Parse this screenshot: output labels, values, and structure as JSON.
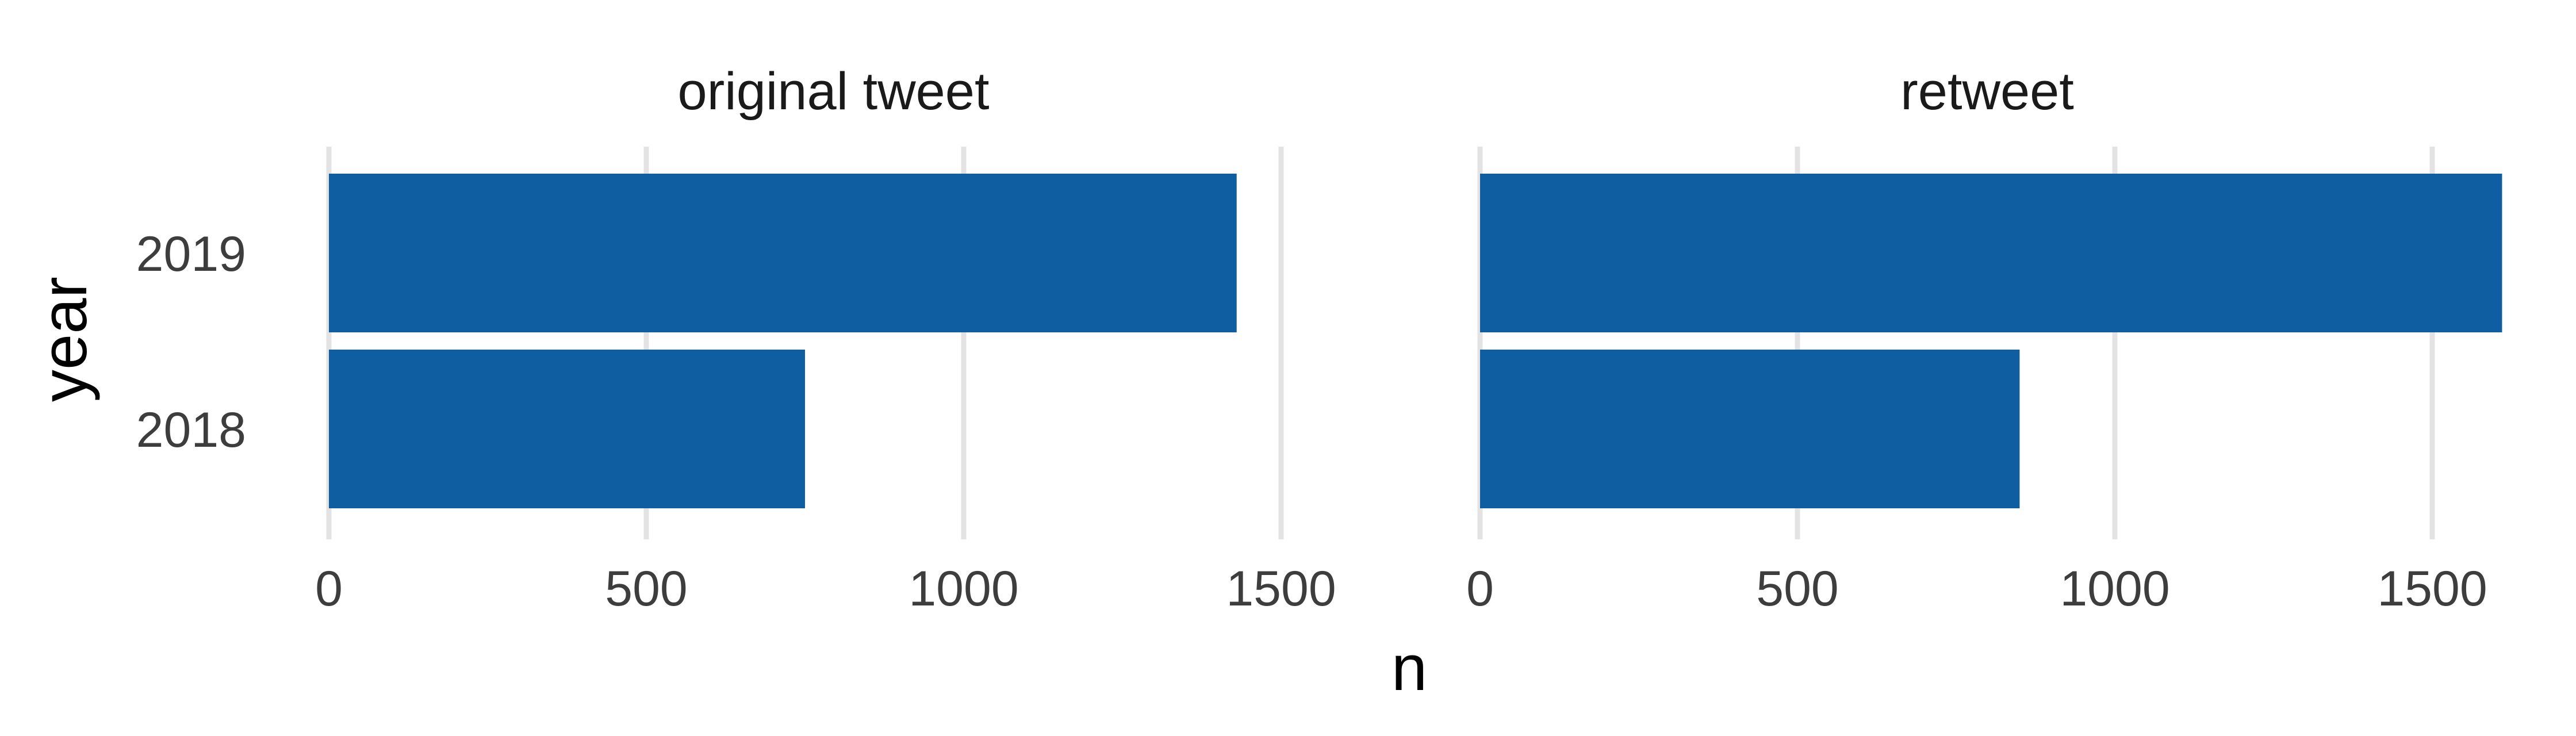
{
  "colors": {
    "bar": "#0f5ea1",
    "grid": "#e3e3e3"
  },
  "chart_data": {
    "type": "bar",
    "orientation": "horizontal",
    "xlabel": "n",
    "ylabel": "year",
    "categories": [
      "2018",
      "2019"
    ],
    "xlim": [
      0,
      1600
    ],
    "xticks": [
      0,
      500,
      1000,
      1500
    ],
    "facets": [
      {
        "label": "original tweet",
        "values": [
          750,
          1430
        ]
      },
      {
        "label": "retweet",
        "values": [
          850,
          1610
        ]
      }
    ],
    "grid": "vertical",
    "legend": "none"
  }
}
